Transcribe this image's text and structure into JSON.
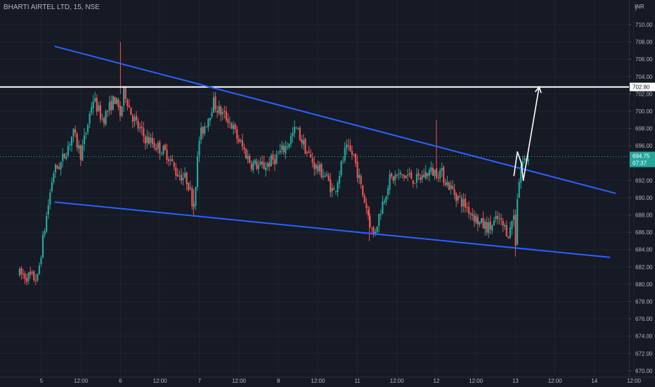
{
  "header": {
    "symbol_label": "BHARTI AIRTEL LTD, 15, NSE",
    "currency_label": "INR"
  },
  "colors": {
    "background": "#161a25",
    "grid": "#1f2430",
    "axis_text": "#b2b5be",
    "up": "#26a69a",
    "down": "#ef5350",
    "trendline": "#2962ff",
    "target_line": "#ffffff",
    "projection": "#ffffff",
    "current_price_bg": "#26a69a"
  },
  "chart_data": {
    "type": "candlestick",
    "title": "BHARTI AIRTEL LTD, 15, NSE",
    "xlabel": "",
    "ylabel": "",
    "ylim": [
      669.5,
      712.2
    ],
    "y_ticks": [
      670,
      672,
      674,
      676,
      678,
      680,
      682,
      684,
      686,
      688,
      690,
      692,
      694,
      696,
      698,
      700,
      702,
      704,
      706,
      708,
      710
    ],
    "y_tick_labels": [
      "670.00",
      "672.00",
      "674.00",
      "676.00",
      "678.00",
      "680.00",
      "682.00",
      "684.00",
      "686.00",
      "688.00",
      "690.00",
      "692.00",
      "694.00",
      "696.00",
      "698.00",
      "700.00",
      "702.00",
      "704.00",
      "706.00",
      "708.00",
      "710.00"
    ],
    "x_ticks": [
      {
        "t": 0,
        "label": "5"
      },
      {
        "t": 1,
        "label": "12:00"
      },
      {
        "t": 2,
        "label": "6"
      },
      {
        "t": 3,
        "label": "12:00"
      },
      {
        "t": 4,
        "label": "7"
      },
      {
        "t": 5,
        "label": "12:00"
      },
      {
        "t": 6,
        "label": "8"
      },
      {
        "t": 7,
        "label": "12:00"
      },
      {
        "t": 8,
        "label": "11"
      },
      {
        "t": 9,
        "label": "12:00"
      },
      {
        "t": 10,
        "label": "12"
      },
      {
        "t": 11,
        "label": "12:00"
      },
      {
        "t": 12,
        "label": "13"
      },
      {
        "t": 13,
        "label": "12:00"
      },
      {
        "t": 14,
        "label": "14"
      },
      {
        "t": 15,
        "label": "12:00"
      }
    ],
    "grid": false,
    "candle_keypoints": [
      [
        -0.6,
        681.2
      ],
      [
        -0.1,
        680.6
      ],
      [
        0,
        684
      ],
      [
        0.3,
        693
      ],
      [
        0.5,
        694
      ],
      [
        0.8,
        697.5
      ],
      [
        1.0,
        695
      ],
      [
        1.15,
        698
      ],
      [
        1.3,
        701.5
      ],
      [
        1.55,
        699
      ],
      [
        1.85,
        701.5
      ],
      [
        2.0,
        699.5
      ],
      [
        2.1,
        702.5
      ],
      [
        2.25,
        700
      ],
      [
        2.4,
        698.5
      ],
      [
        2.6,
        697
      ],
      [
        2.9,
        696
      ],
      [
        3.2,
        695
      ],
      [
        3.4,
        693
      ],
      [
        3.7,
        692
      ],
      [
        3.85,
        689
      ],
      [
        4.0,
        697
      ],
      [
        4.2,
        699
      ],
      [
        4.35,
        701
      ],
      [
        4.5,
        700
      ],
      [
        4.75,
        699
      ],
      [
        4.95,
        697
      ],
      [
        5.3,
        694
      ],
      [
        5.6,
        693.5
      ],
      [
        5.9,
        694.5
      ],
      [
        6.2,
        696
      ],
      [
        6.45,
        698
      ],
      [
        6.75,
        695
      ],
      [
        6.95,
        693.5
      ],
      [
        7.2,
        692.5
      ],
      [
        7.4,
        690.5
      ],
      [
        7.7,
        695.5
      ],
      [
        7.9,
        695
      ],
      [
        8.1,
        691
      ],
      [
        8.25,
        688.5
      ],
      [
        8.4,
        685.5
      ],
      [
        8.6,
        688.8
      ],
      [
        8.8,
        692
      ],
      [
        9.0,
        692.5
      ],
      [
        9.3,
        692.5
      ],
      [
        9.5,
        692
      ],
      [
        9.8,
        693
      ],
      [
        10.1,
        693
      ],
      [
        10.3,
        691.5
      ],
      [
        10.55,
        690
      ],
      [
        10.85,
        688.5
      ],
      [
        11.1,
        687
      ],
      [
        11.35,
        686.5
      ],
      [
        11.55,
        687.5
      ],
      [
        11.85,
        685.8
      ],
      [
        11.95,
        688.5
      ],
      [
        12.0,
        684.5
      ],
      [
        12.05,
        690.3
      ],
      [
        12.15,
        694
      ],
      [
        12.3,
        694.6
      ],
      [
        12.35,
        694.75
      ]
    ],
    "current_price": 694.75,
    "current_price_label": "694.75",
    "countdown_label": "07:37",
    "horizontal_line": {
      "price": 702.8,
      "label": "702.80"
    },
    "trendlines": [
      {
        "name": "upper",
        "points": [
          [
            0.33,
            707.5
          ],
          [
            14.54,
            690.5
          ]
        ]
      },
      {
        "name": "lower",
        "points": [
          [
            0.33,
            689.5
          ],
          [
            14.4,
            683.1
          ]
        ]
      }
    ],
    "projection_path": [
      [
        11.96,
        692.5
      ],
      [
        12.05,
        695.3
      ],
      [
        12.15,
        694.0
      ],
      [
        12.2,
        692.0
      ],
      [
        12.6,
        702.8
      ]
    ]
  }
}
